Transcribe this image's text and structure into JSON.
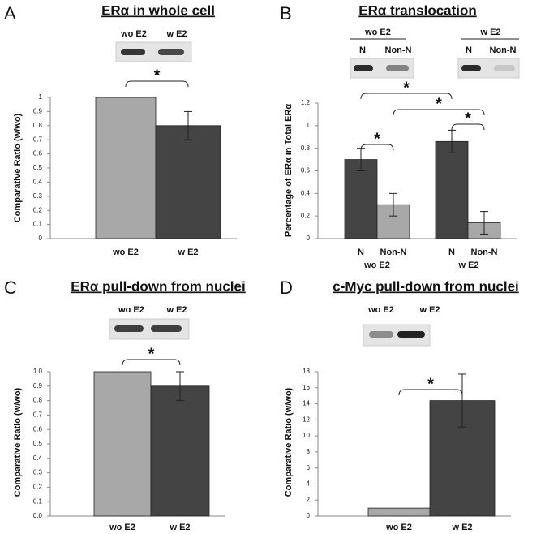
{
  "chart_data": [
    {
      "type": "bar",
      "panel": "A",
      "title": "ERα in whole cell",
      "blot_labels": [
        "wo E2",
        "w E2"
      ],
      "y_label": "Comparative Ratio (w/wo)",
      "categories": [
        "wo E2",
        "w E2"
      ],
      "values": [
        1,
        0.8
      ],
      "errors": [
        null,
        0.1
      ],
      "colors": [
        "#a8a8a8",
        "#444444"
      ],
      "ylim": [
        0,
        1
      ],
      "yticks": [
        0,
        0.1,
        0.2,
        0.3,
        0.4,
        0.5,
        0.6,
        0.7,
        0.8,
        0.9,
        1
      ],
      "annotations": [
        "*"
      ]
    },
    {
      "type": "bar",
      "panel": "B",
      "title": "ERα translocation",
      "blot_groups": [
        "wo E2",
        "w E2"
      ],
      "blot_labels": [
        "N",
        "Non-N",
        "N",
        "Non-N"
      ],
      "y_label": "Percentage of ERα in Total ERα",
      "categories": [
        "N",
        "Non-N",
        "N",
        "Non-N"
      ],
      "groups": [
        "wo E2",
        "w E2"
      ],
      "values": [
        0.7,
        0.3,
        0.86,
        0.14
      ],
      "errors": [
        0.1,
        0.1,
        0.1,
        0.1
      ],
      "colors": [
        "#444444",
        "#a8a8a8",
        "#444444",
        "#a8a8a8"
      ],
      "ylim": [
        0,
        1.2
      ],
      "yticks": [
        0,
        0.2,
        0.4,
        0.6,
        0.8,
        1,
        1.2
      ],
      "annotations": [
        "*",
        "*",
        "*",
        "*"
      ]
    },
    {
      "type": "bar",
      "panel": "C",
      "title": "ERα pull-down from nuclei",
      "blot_labels": [
        "wo E2",
        "w E2"
      ],
      "y_label": "Comparative Ratio (w/wo)",
      "categories": [
        "wo E2",
        "w E2"
      ],
      "values": [
        1,
        0.9
      ],
      "errors": [
        null,
        0.1
      ],
      "colors": [
        "#a8a8a8",
        "#444444"
      ],
      "ylim": [
        0,
        1
      ],
      "yticks": [
        {
          "value": 0,
          "label": "0.0"
        },
        0.1,
        0.2,
        0.3,
        0.4,
        0.5,
        0.6,
        0.7,
        0.8,
        0.9,
        {
          "value": 1,
          "label": "1.0"
        }
      ],
      "annotations": [
        "*"
      ]
    },
    {
      "type": "bar",
      "panel": "D",
      "title": "c-Myc pull-down from nuclei",
      "blot_labels": [
        "wo E2",
        "w E2"
      ],
      "y_label": "Comparative Ratio (w/wo)",
      "categories": [
        "wo E2",
        "w E2"
      ],
      "values": [
        1,
        14.4
      ],
      "errors": [
        null,
        3.3
      ],
      "colors": [
        "#a8a8a8",
        "#444444"
      ],
      "ylim": [
        0,
        18
      ],
      "yticks": [
        0,
        2,
        4,
        6,
        8,
        10,
        12,
        14,
        16,
        18
      ],
      "annotations": [
        "*"
      ]
    }
  ]
}
